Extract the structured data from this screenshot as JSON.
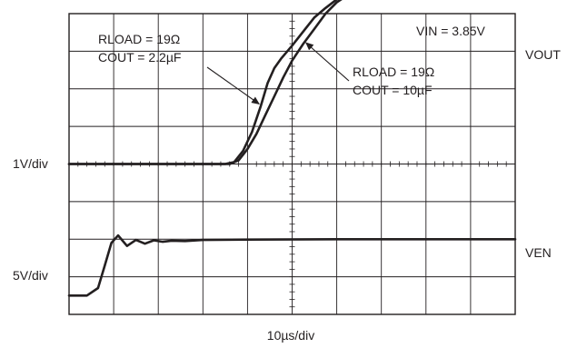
{
  "chart_data": {
    "type": "line",
    "title": "",
    "xlabel": "10µs/div",
    "x_divisions": 10,
    "y_divisions": 8,
    "grid": true,
    "units": {
      "x": "div",
      "y": "div"
    },
    "series": [
      {
        "name": "VOUT",
        "annotation": "RLOAD = 19Ω, COUT = 2.2µF",
        "x": [
          0,
          3.5,
          7.0,
          7.4,
          7.8,
          8.2,
          8.6,
          8.9,
          9.2,
          9.5,
          10.0,
          10.6,
          11.0,
          11.5,
          12.0,
          12.4,
          13.0,
          14.0,
          16.0,
          20.0
        ],
        "y": [
          4.0,
          4.0,
          4.0,
          4.05,
          4.35,
          4.85,
          5.55,
          6.15,
          6.55,
          6.8,
          7.15,
          7.6,
          7.9,
          8.15,
          8.38,
          8.52,
          8.56,
          8.57,
          8.58,
          8.58
        ]
      },
      {
        "name": "VOUT",
        "annotation": "RLOAD = 19Ω, COUT = 10µF",
        "x": [
          0,
          3.5,
          7.2,
          7.6,
          8.0,
          8.4,
          8.8,
          9.2,
          9.6,
          10.0,
          10.5,
          11.0,
          11.5,
          12.0,
          12.5,
          13.0,
          14.0,
          16.0,
          20.0
        ],
        "y": [
          4.0,
          4.0,
          4.0,
          4.1,
          4.4,
          4.8,
          5.3,
          5.8,
          6.3,
          6.75,
          7.2,
          7.6,
          8.0,
          8.3,
          8.5,
          8.56,
          8.57,
          8.58,
          8.58
        ]
      },
      {
        "name": "VEN",
        "x": [
          0,
          0.8,
          1.3,
          1.6,
          1.9,
          2.2,
          2.6,
          3.0,
          3.4,
          3.8,
          4.2,
          4.6,
          5.2,
          6.0,
          8.0,
          12.0,
          16.0,
          20.0
        ],
        "y": [
          0.5,
          0.5,
          0.7,
          1.3,
          1.9,
          2.1,
          1.82,
          1.98,
          1.88,
          1.97,
          1.93,
          1.96,
          1.95,
          1.98,
          1.99,
          2.0,
          2.0,
          2.0
        ]
      }
    ],
    "annotations": {
      "trace1_line1": "RLOAD = 19Ω",
      "trace1_line2": "COUT = 2.2µF",
      "trace2_line1": "RLOAD = 19Ω",
      "trace2_line2": "COUT = 10µF",
      "vin": "VIN = 3.85V"
    },
    "channel_labels": {
      "vout": "VOUT",
      "ven": "VEN",
      "scale_1": "1V/div",
      "scale_2": "5V/div"
    }
  }
}
